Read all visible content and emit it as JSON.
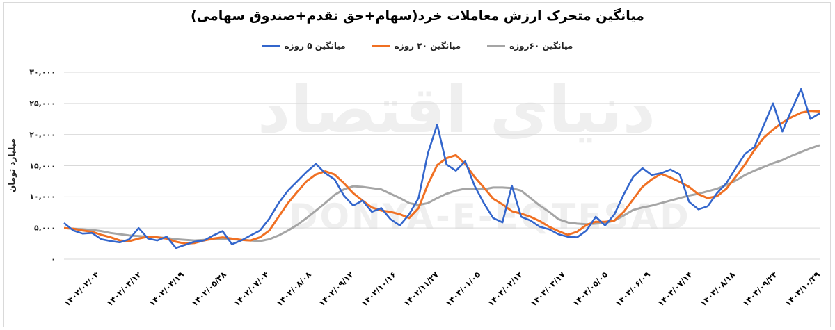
{
  "chart_data": {
    "type": "line",
    "title": "میانگین متحرک ارزش معاملات خرد(سهام+حق تقدم+صندوق سهامی)",
    "xlabel": "",
    "ylabel": "میلیارد تومان",
    "ylim": [
      0,
      30000
    ],
    "yticks": [
      "۰",
      "۵,۰۰۰",
      "۱۰,۰۰۰",
      "۱۵,۰۰۰",
      "۲۰,۰۰۰",
      "۲۵,۰۰۰",
      "۳۰,۰۰۰"
    ],
    "ytick_values": [
      0,
      5000,
      10000,
      15000,
      20000,
      25000,
      30000
    ],
    "grid": true,
    "legend_position": "top",
    "categories": [
      "۱۴۰۲/۰۲/۰۴",
      "۱۴۰۲/۰۳/۱۲",
      "۱۴۰۲/۰۴/۱۹",
      "۱۴۰۲/۰۵/۲۸",
      "۱۴۰۲/۰۷/۰۴",
      "۱۴۰۲/۰۸/۰۸",
      "۱۴۰۲/۰۹/۱۲",
      "۱۴۰۲/۱۰/۱۶",
      "۱۴۰۲/۱۱/۲۷",
      "۱۴۰۳/۰۱/۰۵",
      "۱۴۰۳/۰۲/۱۳",
      "۱۴۰۳/۰۳/۱۷",
      "۱۴۰۳/۰۵/۰۵",
      "۱۴۰۳/۰۶/۰۹",
      "۱۴۰۳/۰۷/۱۴",
      "۱۴۰۳/۰۸/۱۸",
      "۱۴۰۳/۰۹/۲۳",
      "۱۴۰۳/۱۰/۲۹"
    ],
    "x_points": 55,
    "series": [
      {
        "name": "میانگین ۵ روزه",
        "color": "#3366cc",
        "values": [
          5800,
          4600,
          4100,
          4200,
          3200,
          2900,
          2700,
          3200,
          5000,
          3300,
          3000,
          3600,
          1800,
          2300,
          2800,
          3000,
          3800,
          4500,
          2400,
          3000,
          3800,
          4600,
          6500,
          9000,
          11000,
          12500,
          14000,
          15300,
          13800,
          12800,
          10200,
          8600,
          9400,
          7600,
          8200,
          6400,
          5400,
          7200,
          9800,
          17000,
          21600,
          15200,
          14200,
          15700,
          11800,
          9000,
          6600,
          5900,
          11800,
          6800,
          6200,
          5200,
          4800,
          4000,
          3600,
          3500,
          4600,
          6800,
          5400,
          7200,
          10400,
          13200,
          14600,
          13500,
          13800,
          14400,
          13600,
          9200,
          8000,
          8500,
          10600,
          12200,
          14600,
          16900,
          18000,
          21500,
          25000,
          20500,
          24000,
          27300,
          22500,
          23400
        ]
      },
      {
        "name": "میانگین ۲۰ روزه",
        "color": "#f07023",
        "values": [
          5000,
          4900,
          4600,
          4400,
          3900,
          3500,
          3000,
          2900,
          3300,
          3600,
          3500,
          3300,
          2800,
          2500,
          2600,
          3000,
          3300,
          3500,
          3300,
          3100,
          3000,
          3500,
          4600,
          6800,
          9000,
          10800,
          12500,
          13600,
          14100,
          13600,
          12200,
          10600,
          9400,
          8300,
          7800,
          7600,
          7200,
          6600,
          8200,
          12000,
          15100,
          16200,
          16700,
          15300,
          13200,
          11500,
          9700,
          8800,
          7700,
          7300,
          6800,
          6100,
          5200,
          4500,
          3900,
          4400,
          5500,
          6000,
          6000,
          6200,
          7600,
          9600,
          11600,
          12800,
          13700,
          13100,
          12400,
          11600,
          10400,
          9800,
          10100,
          11300,
          13200,
          15200,
          17500,
          19500,
          20800,
          21900,
          22800,
          23500,
          23800,
          23700
        ]
      },
      {
        "name": "میانگین ۶۰روزه",
        "color": "#a5a5a5",
        "values": [
          5000,
          4900,
          4800,
          4700,
          4500,
          4200,
          4000,
          3800,
          3700,
          3600,
          3500,
          3400,
          3200,
          3100,
          3000,
          3100,
          3200,
          3300,
          3200,
          3100,
          3000,
          2900,
          3200,
          3800,
          4600,
          5500,
          6600,
          7800,
          9000,
          10300,
          11200,
          11700,
          11600,
          11400,
          11200,
          10500,
          9800,
          9000,
          8700,
          9000,
          9800,
          10500,
          11000,
          11300,
          11300,
          11200,
          11500,
          11500,
          11400,
          11000,
          9800,
          8600,
          7600,
          6400,
          5900,
          5700,
          5600,
          5700,
          5800,
          6200,
          7000,
          7900,
          8300,
          8600,
          9000,
          9400,
          9800,
          10200,
          10500,
          10900,
          11300,
          11900,
          12600,
          13500,
          14200,
          14800,
          15400,
          15900,
          16600,
          17200,
          17800,
          18300
        ]
      }
    ]
  },
  "header": {
    "title": "میانگین متحرک ارزش معاملات خرد(سهام+حق تقدم+صندوق سهامی)"
  },
  "legend": {
    "items": [
      {
        "label": "میانگین ۶۰روزه",
        "color": "#a5a5a5"
      },
      {
        "label": "میانگین ۲۰ روزه",
        "color": "#f07023"
      },
      {
        "label": "میانگین ۵ روزه",
        "color": "#3366cc"
      }
    ]
  },
  "axis": {
    "ylabel": "میلیارد تومان"
  },
  "watermark": {
    "persian": "دنیای اقتصاد",
    "latin": "DONYA-E-EQTESAD"
  },
  "colors": {
    "grid": "#d9d9d9",
    "series_5": "#3366cc",
    "series_20": "#f07023",
    "series_60": "#a5a5a5"
  }
}
